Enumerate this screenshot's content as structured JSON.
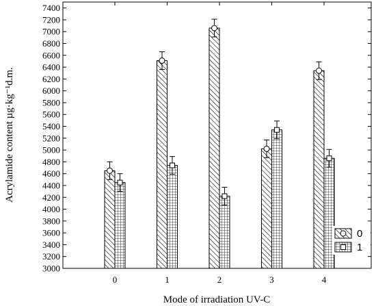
{
  "chart_data": {
    "type": "bar",
    "xlabel": "Mode of irradiation  UV-C",
    "ylabel": "Acrylamide content µg·kg⁻¹d.m.",
    "ylim": [
      3000,
      7500
    ],
    "yticks": [
      3000,
      3200,
      3400,
      3600,
      3800,
      4000,
      4200,
      4400,
      4600,
      4800,
      5000,
      5200,
      5400,
      5600,
      5800,
      6000,
      6200,
      6400,
      6600,
      6800,
      7000,
      7200,
      7400
    ],
    "categories": [
      "0",
      "1",
      "2",
      "3",
      "4"
    ],
    "series": [
      {
        "name": "0",
        "pattern": "diagonal-hatch",
        "marker": "circle",
        "values": [
          4650,
          6510,
          7060,
          5020,
          6340
        ],
        "errors": [
          150,
          150,
          150,
          150,
          150
        ]
      },
      {
        "name": "1",
        "pattern": "grid-hatch",
        "marker": "square",
        "values": [
          4450,
          4740,
          4220,
          5340,
          4860
        ],
        "errors": [
          150,
          150,
          150,
          150,
          150
        ]
      }
    ],
    "legend_position": "bottom-right",
    "grid": false
  }
}
